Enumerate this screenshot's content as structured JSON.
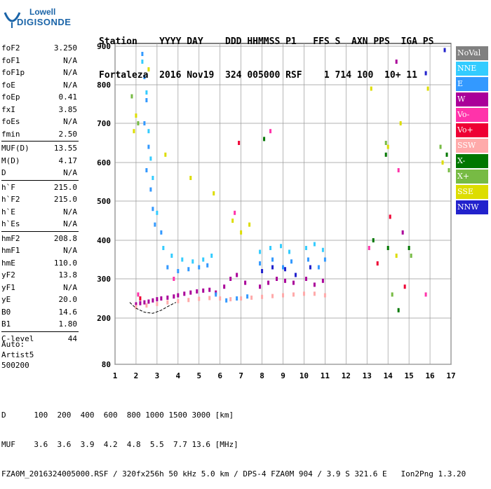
{
  "logo": {
    "line1": "Lowell",
    "line2": "DIGISONDE"
  },
  "header": {
    "line1": "Station    YYYY DAY    DDD HHMMSS P1   FFS S  AXN PPS  IGA PS",
    "line2": "Fortaleza  2016 Nov19  324 005000 RSF    1 714 100  10+ 11"
  },
  "params": [
    {
      "label": "foF2",
      "value": "3.250"
    },
    {
      "label": "foF1",
      "value": "N/A"
    },
    {
      "label": "foF1p",
      "value": "N/A"
    },
    {
      "label": "foE",
      "value": "N/A"
    },
    {
      "label": "foEp",
      "value": "0.41"
    },
    {
      "label": "fxI",
      "value": "3.85"
    },
    {
      "label": "foEs",
      "value": "N/A"
    },
    {
      "label": "fmin",
      "value": "2.50"
    },
    {
      "label": "MUF(D)",
      "value": "13.55"
    },
    {
      "label": "M(D)",
      "value": "4.17"
    },
    {
      "label": "D",
      "value": "N/A"
    },
    {
      "label": "h`F",
      "value": "215.0"
    },
    {
      "label": "h`F2",
      "value": "215.0"
    },
    {
      "label": "h`E",
      "value": "N/A"
    },
    {
      "label": "h`Es",
      "value": "N/A"
    },
    {
      "label": "hmF2",
      "value": "208.8"
    },
    {
      "label": "hmF1",
      "value": "N/A"
    },
    {
      "label": "hmE",
      "value": "110.0"
    },
    {
      "label": "yF2",
      "value": "13.8"
    },
    {
      "label": "yF1",
      "value": "N/A"
    },
    {
      "label": "yE",
      "value": "20.0"
    },
    {
      "label": "B0",
      "value": "14.6"
    },
    {
      "label": "B1",
      "value": "1.80"
    },
    {
      "label": "C-level",
      "value": "44"
    }
  ],
  "auto": {
    "line1": "Auto:",
    "line2": "Artist5",
    "line3": "500200"
  },
  "bottom": {
    "d_row": "D      100  200  400  600  800 1000 1500 3000 [km]",
    "muf_row": "MUF    3.6  3.6  3.9  4.2  4.8  5.5  7.7 13.6 [MHz]",
    "footer": "FZA0M_2016324005000.RSF / 320fx256h 50 kHz 5.0 km / DPS-4 FZA0M 904 / 3.9 S 321.6 E   Ion2Png 1.3.20"
  },
  "legend": [
    {
      "label": "NoVal",
      "color": "#808080"
    },
    {
      "label": "NNE",
      "color": "#33ccff"
    },
    {
      "label": "E",
      "color": "#3399ff"
    },
    {
      "label": "W",
      "color": "#aa0099"
    },
    {
      "label": "Vo-",
      "color": "#ff33aa"
    },
    {
      "label": "Vo+",
      "color": "#ee0033"
    },
    {
      "label": "SSW",
      "color": "#ffaaaa"
    },
    {
      "label": "X-",
      "color": "#007700"
    },
    {
      "label": "X+",
      "color": "#77bb44"
    },
    {
      "label": "SSE",
      "color": "#dddd00"
    },
    {
      "label": "NNW",
      "color": "#2222cc"
    }
  ],
  "chart_data": {
    "type": "scatter",
    "xlabel": "",
    "ylabel": "",
    "xlim": [
      1,
      17
    ],
    "ylim": [
      80,
      900
    ],
    "x_ticks": [
      1,
      2,
      3,
      4,
      5,
      6,
      7,
      8,
      9,
      10,
      11,
      12,
      13,
      14,
      15,
      16,
      17
    ],
    "y_ticks": [
      80,
      200,
      300,
      400,
      500,
      600,
      700,
      800,
      900
    ],
    "grid": true,
    "series": [
      {
        "name": "W",
        "color": "#aa0099",
        "points": [
          [
            2.0,
            235
          ],
          [
            2.2,
            238
          ],
          [
            2.4,
            240
          ],
          [
            2.6,
            242
          ],
          [
            2.8,
            245
          ],
          [
            3.0,
            248
          ],
          [
            3.2,
            250
          ],
          [
            3.5,
            252
          ],
          [
            3.8,
            255
          ],
          [
            4.0,
            258
          ],
          [
            4.3,
            262
          ],
          [
            4.6,
            265
          ],
          [
            4.9,
            268
          ],
          [
            5.2,
            270
          ],
          [
            5.5,
            272
          ],
          [
            5.8,
            265
          ],
          [
            6.2,
            280
          ],
          [
            6.5,
            300
          ],
          [
            6.8,
            310
          ],
          [
            7.2,
            290
          ],
          [
            7.9,
            280
          ],
          [
            8.3,
            290
          ],
          [
            8.7,
            300
          ],
          [
            9.1,
            295
          ],
          [
            9.5,
            290
          ],
          [
            10.1,
            300
          ],
          [
            10.5,
            285
          ],
          [
            10.9,
            295
          ],
          [
            14.7,
            420
          ],
          [
            14.4,
            860
          ]
        ]
      },
      {
        "name": "E",
        "color": "#3399ff",
        "points": [
          [
            2.3,
            880
          ],
          [
            2.4,
            820
          ],
          [
            2.5,
            760
          ],
          [
            2.4,
            700
          ],
          [
            2.6,
            640
          ],
          [
            2.5,
            580
          ],
          [
            2.7,
            530
          ],
          [
            2.8,
            480
          ],
          [
            2.9,
            440
          ],
          [
            3.2,
            420
          ],
          [
            3.5,
            330
          ],
          [
            4.0,
            320
          ],
          [
            4.5,
            325
          ],
          [
            5.0,
            330
          ],
          [
            5.4,
            335
          ],
          [
            5.8,
            260
          ],
          [
            6.3,
            245
          ],
          [
            6.8,
            250
          ],
          [
            7.3,
            255
          ],
          [
            7.9,
            340
          ],
          [
            8.5,
            350
          ],
          [
            9.0,
            330
          ],
          [
            9.4,
            345
          ],
          [
            10.2,
            350
          ],
          [
            10.7,
            330
          ],
          [
            11.0,
            350
          ]
        ]
      },
      {
        "name": "NNE",
        "color": "#33ccff",
        "points": [
          [
            2.3,
            860
          ],
          [
            2.5,
            780
          ],
          [
            2.6,
            680
          ],
          [
            2.7,
            610
          ],
          [
            2.8,
            560
          ],
          [
            3.0,
            470
          ],
          [
            3.3,
            380
          ],
          [
            3.7,
            360
          ],
          [
            4.2,
            350
          ],
          [
            4.7,
            345
          ],
          [
            5.2,
            350
          ],
          [
            5.6,
            360
          ],
          [
            7.9,
            370
          ],
          [
            8.4,
            380
          ],
          [
            8.9,
            385
          ],
          [
            9.3,
            370
          ],
          [
            10.1,
            380
          ],
          [
            10.5,
            390
          ],
          [
            10.9,
            375
          ]
        ]
      },
      {
        "name": "SSW",
        "color": "#ffaaaa",
        "points": [
          [
            2.0,
            228
          ],
          [
            2.5,
            232
          ],
          [
            3.0,
            236
          ],
          [
            3.5,
            240
          ],
          [
            4.0,
            243
          ],
          [
            4.5,
            246
          ],
          [
            5.0,
            249
          ],
          [
            5.5,
            251
          ],
          [
            6.0,
            250
          ],
          [
            6.5,
            248
          ],
          [
            7.0,
            250
          ],
          [
            7.5,
            252
          ],
          [
            8.0,
            254
          ],
          [
            8.5,
            256
          ],
          [
            9.0,
            258
          ],
          [
            9.5,
            260
          ],
          [
            10.0,
            262
          ],
          [
            10.5,
            262
          ],
          [
            11.0,
            258
          ]
        ]
      },
      {
        "name": "SSE",
        "color": "#dddd00",
        "points": [
          [
            1.9,
            680
          ],
          [
            2.0,
            720
          ],
          [
            2.6,
            840
          ],
          [
            3.4,
            620
          ],
          [
            4.6,
            560
          ],
          [
            5.7,
            520
          ],
          [
            6.6,
            450
          ],
          [
            7.0,
            420
          ],
          [
            7.4,
            440
          ],
          [
            13.2,
            790
          ],
          [
            14.0,
            640
          ],
          [
            14.4,
            360
          ],
          [
            14.6,
            700
          ],
          [
            15.9,
            790
          ],
          [
            16.6,
            600
          ]
        ]
      },
      {
        "name": "X-",
        "color": "#007700",
        "points": [
          [
            8.1,
            660
          ],
          [
            13.3,
            400
          ],
          [
            13.9,
            620
          ],
          [
            14.0,
            380
          ],
          [
            14.5,
            220
          ],
          [
            15.0,
            380
          ],
          [
            16.8,
            620
          ]
        ]
      },
      {
        "name": "X+",
        "color": "#77bb44",
        "points": [
          [
            1.8,
            770
          ],
          [
            2.1,
            700
          ],
          [
            13.9,
            650
          ],
          [
            14.2,
            260
          ],
          [
            15.1,
            360
          ],
          [
            16.5,
            640
          ],
          [
            16.9,
            580
          ]
        ]
      },
      {
        "name": "Vo-",
        "color": "#ff33aa",
        "points": [
          [
            2.1,
            260
          ],
          [
            3.8,
            300
          ],
          [
            6.7,
            470
          ],
          [
            8.4,
            680
          ],
          [
            13.1,
            380
          ],
          [
            14.5,
            580
          ],
          [
            15.8,
            260
          ]
        ]
      },
      {
        "name": "Vo+",
        "color": "#ee0033",
        "points": [
          [
            2.2,
            250
          ],
          [
            6.9,
            650
          ],
          [
            13.5,
            340
          ],
          [
            14.1,
            460
          ],
          [
            14.8,
            280
          ]
        ]
      },
      {
        "name": "NNW",
        "color": "#2222cc",
        "points": [
          [
            8.0,
            320
          ],
          [
            8.5,
            330
          ],
          [
            9.1,
            325
          ],
          [
            9.6,
            310
          ],
          [
            10.3,
            330
          ],
          [
            16.7,
            890
          ],
          [
            15.8,
            830
          ]
        ]
      }
    ],
    "trace": {
      "name": "trace",
      "color": "#000000",
      "points": [
        [
          1.7,
          240
        ],
        [
          2.0,
          225
        ],
        [
          2.4,
          215
        ],
        [
          2.8,
          212
        ],
        [
          3.2,
          220
        ],
        [
          3.6,
          232
        ],
        [
          3.9,
          240
        ]
      ]
    }
  }
}
